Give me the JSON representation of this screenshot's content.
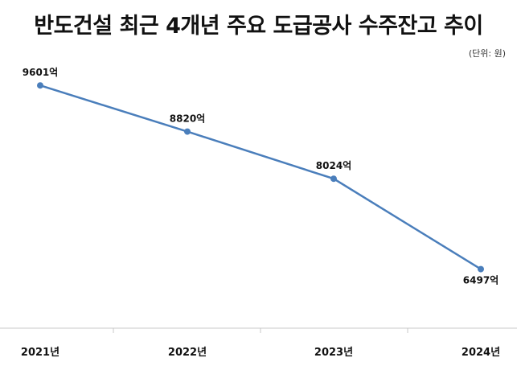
{
  "chart_data": {
    "type": "line",
    "title": "반도건설 최근 4개년 주요 도급공사 수주잔고 추이",
    "unit_note": "(단위: 원)",
    "categories": [
      "2021년",
      "2022년",
      "2023년",
      "2024년"
    ],
    "values": [
      9601,
      8820,
      8024,
      6497
    ],
    "data_labels": [
      "9601억",
      "8820억",
      "8024억",
      "6497억"
    ],
    "series_color": "#4a7ebb",
    "ylim": [
      5500,
      10500
    ],
    "grid": false,
    "legend": "none"
  }
}
